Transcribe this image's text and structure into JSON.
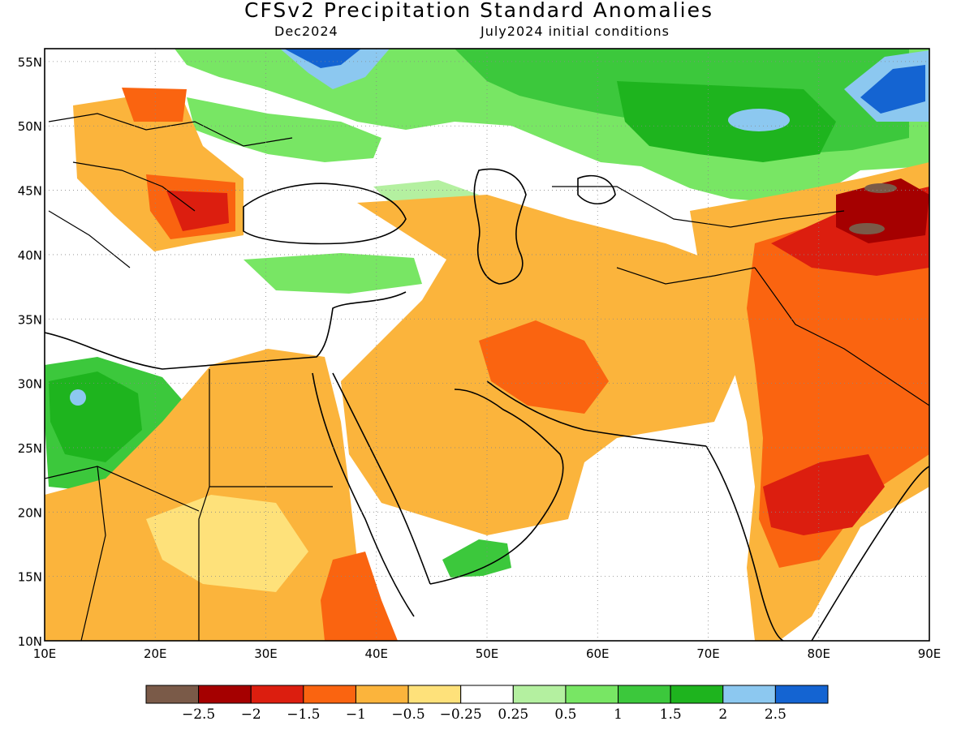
{
  "header": {
    "title": "CFSv2 Precipitation Standard Anomalies",
    "valid_month": "Dec2024",
    "init": "July2024 initial conditions"
  },
  "map": {
    "lon_range": [
      10,
      90
    ],
    "lat_range": [
      10,
      56
    ],
    "lon_ticks": [
      "10E",
      "20E",
      "30E",
      "40E",
      "50E",
      "60E",
      "70E",
      "80E",
      "90E"
    ],
    "lat_ticks": [
      "10N",
      "15N",
      "20N",
      "25N",
      "30N",
      "35N",
      "40N",
      "45N",
      "50N",
      "55N"
    ]
  },
  "colorbar": {
    "colors": [
      "#7a5a48",
      "#a50000",
      "#dc1e0f",
      "#fa6410",
      "#fbb43c",
      "#fee17a",
      "#ffffff",
      "#b4f0a0",
      "#78e664",
      "#3cc83c",
      "#1eb41e",
      "#8cc8f0",
      "#1464d2"
    ],
    "labels": [
      "−2.5",
      "−2",
      "−1.5",
      "−1",
      "−0.5",
      "−0.25",
      "0.25",
      "0.5",
      "1",
      "1.5",
      "2",
      "2.5"
    ]
  }
}
